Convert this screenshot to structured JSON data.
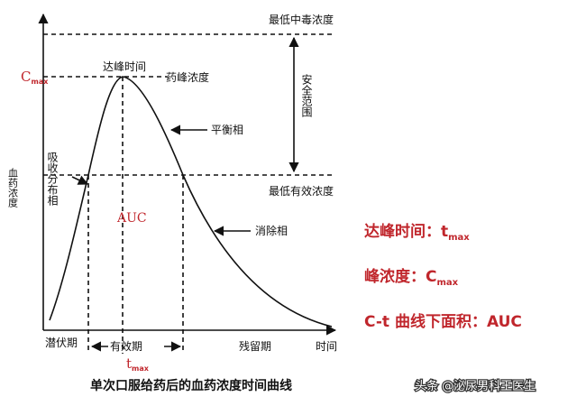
{
  "diagram": {
    "y_axis_label": "血药浓度",
    "x_axis_label": "时间",
    "min_toxic_conc": "最低中毒浓度",
    "min_effective_conc": "最低有效浓度",
    "cmax_symbol": "C",
    "cmax_sub": "max",
    "tmax_symbol": "t",
    "tmax_sub": "max",
    "peak_time": "达峰时间",
    "peak_conc": "药峰浓度",
    "equilibrium_phase": "平衡相",
    "elimination_phase": "消除相",
    "absorption_phase": "吸收分布相",
    "safe_range": "安全范围",
    "auc": "AUC",
    "latent_period": "潜伏期",
    "effective_period": "有效期",
    "residual_period": "残留期",
    "caption": "单次口服给药后的血药浓度时间曲线"
  },
  "legend": {
    "peak_time_label": "达峰时间：t",
    "peak_time_sub": "max",
    "peak_conc_label": "峰浓度：C",
    "peak_conc_sub": "max",
    "auc_label": "C-t 曲线下面积：AUC"
  },
  "watermark": "头条 @泌尿男科王医生",
  "colors": {
    "accent": "#c0262c",
    "ink": "#111111"
  }
}
